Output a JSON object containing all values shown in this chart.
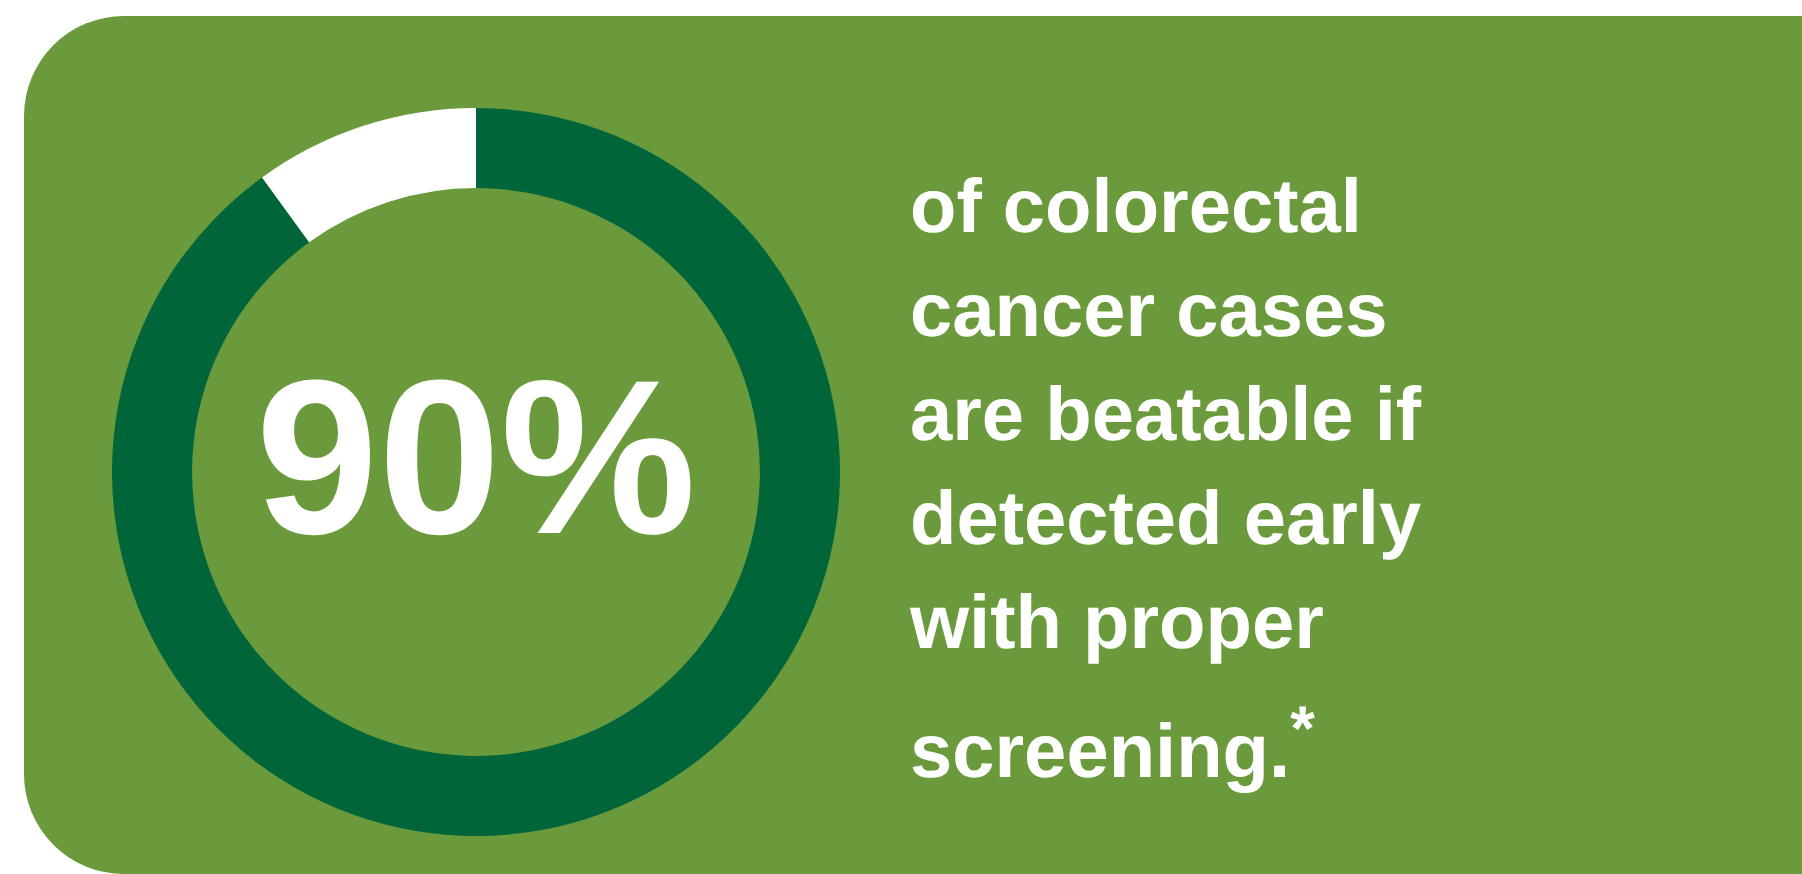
{
  "chart_data": {
    "type": "donut",
    "categories": [
      null,
      null
    ],
    "values": [
      90,
      10
    ],
    "colors": [
      "#00663a",
      "#ffffff"
    ],
    "value_labels": [
      "90%",
      null
    ],
    "legend": false,
    "annotations": [
      "of colorectal\ncancer cases\nare beatable if\ndetected early\nwith proper\nscreening.$^{*}$"
    ]
  }
}
